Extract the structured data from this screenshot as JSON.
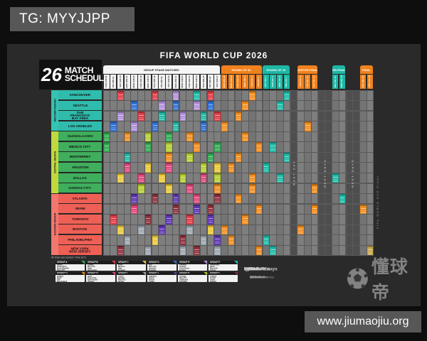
{
  "overlay": {
    "tg": "TG: MYYJJPP",
    "url": "www.jiumaojiu.org",
    "watermark": "懂球帝"
  },
  "poster": {
    "title": "FIFA WORLD CUP 2026",
    "logo": {
      "number": "26",
      "line1": "MATCH",
      "line2": "SCHEDULE"
    },
    "footnote": "All times are Eastern Time (ET)",
    "vertical_caption": "FIFA WORLD CUP FINAL",
    "colors": {
      "tab_orange": "#f0821e",
      "tab_teal": "#1db8a5",
      "tab_white": "#f5f5f5",
      "grid_bg": "#5a5a5a",
      "cell": "#7e7e7e",
      "cell_alt": "#747474",
      "cell_rest": "#4e4e4e",
      "final_gold": "#c8a84b",
      "western": "#2fbcac",
      "western_strip": "#35c3b2",
      "central": "#3fae5d",
      "central_strip": "#c1d93f",
      "eastern": "#ee5f55",
      "eastern_strip": "#f2776e"
    },
    "palette": {
      "A": "#2fa84f",
      "B": "#e03a45",
      "C": "#e9c737",
      "D": "#2e6fd4",
      "E": "#b08fd8",
      "F": "#1db8a5",
      "G": "#f08c1e",
      "H": "#e0457b",
      "I": "#9aa4ad",
      "J": "#5e35b1",
      "K": "#b5cc2e",
      "L": "#8e2f3c",
      "O": "#f08c1e",
      "T": "#1db8a5",
      "X": "#c8a84b"
    },
    "stage_tabs": [
      {
        "label": "GROUP STAGE MATCHES",
        "bg": "#f5f5f5",
        "fg": "#1c1c1c",
        "c0": 0,
        "c1": 16
      },
      {
        "label": "ROUND OF 32",
        "bg": "#f0821e",
        "fg": "#ffffff",
        "c0": 17,
        "c1": 22
      },
      {
        "label": "ROUND OF 16",
        "bg": "#1db8a5",
        "fg": "#ffffff",
        "c0": 23,
        "c1": 26
      },
      {
        "label": "QUARTER-FINALS",
        "bg": "#f0821e",
        "fg": "#ffffff",
        "c0": 28,
        "c1": 30
      },
      {
        "label": "SEMI-FINALS",
        "bg": "#1db8a5",
        "fg": "#ffffff",
        "c0": 33,
        "c1": 34
      },
      {
        "label": "FINAL",
        "bg": "#f0821e",
        "fg": "#ffffff",
        "c0": 37,
        "c1": 38
      }
    ],
    "columns": [
      {
        "dow": "THU",
        "date": "JUN 11",
        "stage": "group"
      },
      {
        "dow": "FRI",
        "date": "JUN 12",
        "stage": "group"
      },
      {
        "dow": "SAT",
        "date": "JUN 13",
        "stage": "group"
      },
      {
        "dow": "SUN",
        "date": "JUN 14",
        "stage": "group"
      },
      {
        "dow": "MON",
        "date": "JUN 15",
        "stage": "group"
      },
      {
        "dow": "TUE",
        "date": "JUN 16",
        "stage": "group"
      },
      {
        "dow": "WED",
        "date": "JUN 17",
        "stage": "group"
      },
      {
        "dow": "THU",
        "date": "JUN 18",
        "stage": "group"
      },
      {
        "dow": "FRI",
        "date": "JUN 19",
        "stage": "group"
      },
      {
        "dow": "SAT",
        "date": "JUN 20",
        "stage": "group"
      },
      {
        "dow": "SUN",
        "date": "JUN 21",
        "stage": "group"
      },
      {
        "dow": "MON",
        "date": "JUN 22",
        "stage": "group"
      },
      {
        "dow": "TUE",
        "date": "JUN 23",
        "stage": "group"
      },
      {
        "dow": "WED",
        "date": "JUN 24",
        "stage": "group"
      },
      {
        "dow": "THU",
        "date": "JUN 25",
        "stage": "group"
      },
      {
        "dow": "FRI",
        "date": "JUN 26",
        "stage": "group"
      },
      {
        "dow": "SAT",
        "date": "JUN 27",
        "stage": "group"
      },
      {
        "dow": "SUN",
        "date": "JUN 28",
        "stage": "r32"
      },
      {
        "dow": "MON",
        "date": "JUN 29",
        "stage": "r32"
      },
      {
        "dow": "TUE",
        "date": "JUN 30",
        "stage": "r32"
      },
      {
        "dow": "WED",
        "date": "JUL 1",
        "stage": "r32"
      },
      {
        "dow": "THU",
        "date": "JUL 2",
        "stage": "r32"
      },
      {
        "dow": "FRI",
        "date": "JUL 3",
        "stage": "r32"
      },
      {
        "dow": "SAT",
        "date": "JUL 4",
        "stage": "r16"
      },
      {
        "dow": "SUN",
        "date": "JUL 5",
        "stage": "r16"
      },
      {
        "dow": "MON",
        "date": "JUL 6",
        "stage": "r16"
      },
      {
        "dow": "TUE",
        "date": "JUL 7",
        "stage": "r16"
      },
      {
        "dow": "WED",
        "date": "JUL 8",
        "stage": "rest"
      },
      {
        "dow": "THU",
        "date": "JUL 9",
        "stage": "qf"
      },
      {
        "dow": "FRI",
        "date": "JUL 10",
        "stage": "qf"
      },
      {
        "dow": "SAT",
        "date": "JUL 11",
        "stage": "qf"
      },
      {
        "dow": "SUN",
        "date": "JUL 12",
        "stage": "rest"
      },
      {
        "dow": "MON",
        "date": "JUL 13",
        "stage": "rest"
      },
      {
        "dow": "TUE",
        "date": "JUL 14",
        "stage": "sf"
      },
      {
        "dow": "WED",
        "date": "JUL 15",
        "stage": "sf"
      },
      {
        "dow": "THU",
        "date": "JUL 16",
        "stage": "rest"
      },
      {
        "dow": "FRI",
        "date": "JUL 17",
        "stage": "rest"
      },
      {
        "dow": "SAT",
        "date": "JUL 18",
        "stage": "bronze"
      },
      {
        "dow": "SUN",
        "date": "JUL 19",
        "stage": "final"
      }
    ],
    "rest_groups": [
      {
        "cols": [
          27
        ],
        "label": "REST DAY"
      },
      {
        "cols": [
          31,
          32
        ],
        "label": "REST DAYS"
      },
      {
        "cols": [
          35,
          36
        ],
        "label": "REST DAYS"
      }
    ],
    "regions": [
      {
        "name": "WESTERN REGION",
        "rows": [
          0,
          3
        ],
        "cities": [
          "VANCOUVER",
          "SEATTLE",
          "SAN FRANCISCO\nBAY AREA",
          "LOS ANGELES"
        ]
      },
      {
        "name": "CENTRAL REGION",
        "rows": [
          4,
          9
        ],
        "cities": [
          "GUADALAJARA",
          "MEXICO CITY",
          "MONTERREY",
          "HOUSTON",
          "DALLAS",
          "KANSAS CITY"
        ]
      },
      {
        "name": "EASTERN REGION",
        "rows": [
          10,
          15
        ],
        "cities": [
          "ATLANTA",
          "MIAMI",
          "TORONTO",
          "BOSTON",
          "PHILADELPHIA",
          "NEW YORK\nNEW JERSEY"
        ]
      }
    ],
    "grid_cells": [
      [
        0,
        2,
        "B"
      ],
      [
        0,
        7,
        "B"
      ],
      [
        0,
        10,
        "E"
      ],
      [
        0,
        13,
        "F"
      ],
      [
        0,
        15,
        "B"
      ],
      [
        1,
        4,
        "D"
      ],
      [
        1,
        8,
        "E"
      ],
      [
        1,
        10,
        "D"
      ],
      [
        1,
        13,
        "E"
      ],
      [
        1,
        15,
        "D"
      ],
      [
        2,
        2,
        "E"
      ],
      [
        2,
        5,
        "B"
      ],
      [
        2,
        8,
        "F"
      ],
      [
        2,
        11,
        "E"
      ],
      [
        2,
        14,
        "F"
      ],
      [
        2,
        16,
        "B"
      ],
      [
        3,
        1,
        "D"
      ],
      [
        3,
        4,
        "E"
      ],
      [
        3,
        7,
        "D"
      ],
      [
        3,
        10,
        "F"
      ],
      [
        3,
        14,
        "D"
      ],
      [
        4,
        0,
        "A"
      ],
      [
        4,
        3,
        "G"
      ],
      [
        4,
        6,
        "K"
      ],
      [
        4,
        9,
        "A"
      ],
      [
        4,
        12,
        "G"
      ],
      [
        5,
        0,
        "A"
      ],
      [
        5,
        6,
        "A"
      ],
      [
        5,
        9,
        "K"
      ],
      [
        5,
        13,
        "G"
      ],
      [
        5,
        16,
        "A"
      ],
      [
        6,
        3,
        "F"
      ],
      [
        6,
        9,
        "G"
      ],
      [
        6,
        12,
        "K"
      ],
      [
        6,
        15,
        "A"
      ],
      [
        7,
        3,
        "H"
      ],
      [
        7,
        6,
        "C"
      ],
      [
        7,
        9,
        "H"
      ],
      [
        7,
        14,
        "K"
      ],
      [
        7,
        16,
        "C"
      ],
      [
        8,
        2,
        "C"
      ],
      [
        8,
        5,
        "H"
      ],
      [
        8,
        8,
        "C"
      ],
      [
        8,
        11,
        "K"
      ],
      [
        8,
        14,
        "H"
      ],
      [
        8,
        16,
        "K"
      ],
      [
        9,
        5,
        "K"
      ],
      [
        9,
        9,
        "C"
      ],
      [
        9,
        12,
        "H"
      ],
      [
        9,
        16,
        "G"
      ],
      [
        10,
        4,
        "J"
      ],
      [
        10,
        7,
        "L"
      ],
      [
        10,
        10,
        "J"
      ],
      [
        10,
        13,
        "H"
      ],
      [
        10,
        16,
        "L"
      ],
      [
        11,
        4,
        "H"
      ],
      [
        11,
        10,
        "L"
      ],
      [
        11,
        13,
        "J"
      ],
      [
        11,
        15,
        "L"
      ],
      [
        12,
        1,
        "B"
      ],
      [
        12,
        6,
        "L"
      ],
      [
        12,
        9,
        "J"
      ],
      [
        12,
        12,
        "B"
      ],
      [
        12,
        15,
        "J"
      ],
      [
        13,
        2,
        "C"
      ],
      [
        13,
        5,
        "I"
      ],
      [
        13,
        8,
        "J"
      ],
      [
        13,
        12,
        "I"
      ],
      [
        13,
        15,
        "C"
      ],
      [
        14,
        3,
        "I"
      ],
      [
        14,
        7,
        "C"
      ],
      [
        14,
        11,
        "L"
      ],
      [
        14,
        14,
        "I"
      ],
      [
        14,
        16,
        "J"
      ],
      [
        15,
        2,
        "L"
      ],
      [
        15,
        6,
        "I"
      ],
      [
        15,
        11,
        "I"
      ],
      [
        15,
        13,
        "L"
      ],
      [
        15,
        16,
        "I"
      ],
      [
        3,
        17,
        "O"
      ],
      [
        13,
        17,
        "O"
      ],
      [
        7,
        18,
        "O"
      ],
      [
        14,
        18,
        "O"
      ],
      [
        2,
        19,
        "O"
      ],
      [
        6,
        19,
        "O"
      ],
      [
        10,
        19,
        "O"
      ],
      [
        1,
        20,
        "O"
      ],
      [
        4,
        20,
        "O"
      ],
      [
        12,
        20,
        "O"
      ],
      [
        0,
        21,
        "O"
      ],
      [
        8,
        21,
        "O"
      ],
      [
        9,
        21,
        "O"
      ],
      [
        5,
        22,
        "O"
      ],
      [
        11,
        22,
        "O"
      ],
      [
        15,
        22,
        "O"
      ],
      [
        7,
        23,
        "T"
      ],
      [
        14,
        23,
        "T"
      ],
      [
        5,
        24,
        "T"
      ],
      [
        15,
        24,
        "T"
      ],
      [
        1,
        25,
        "T"
      ],
      [
        8,
        25,
        "T"
      ],
      [
        0,
        26,
        "T"
      ],
      [
        6,
        26,
        "T"
      ],
      [
        13,
        28,
        "O"
      ],
      [
        3,
        29,
        "O"
      ],
      [
        9,
        30,
        "O"
      ],
      [
        11,
        30,
        "O"
      ],
      [
        8,
        33,
        "T"
      ],
      [
        10,
        34,
        "T"
      ],
      [
        11,
        37,
        "O"
      ],
      [
        15,
        38,
        "X"
      ]
    ],
    "legend": [
      {
        "name": "GROUP A",
        "color": "#2fa84f",
        "teams": [
          "Mexico",
          "South Africa",
          "Korea Republic",
          "Play-off D"
        ]
      },
      {
        "name": "GROUP B",
        "color": "#e03a45",
        "teams": [
          "Canada",
          "Play-off A",
          "Qatar",
          "Switzerland"
        ]
      },
      {
        "name": "GROUP C",
        "color": "#e9c737",
        "teams": [
          "Brazil",
          "Morocco",
          "Haiti",
          "Scotland"
        ]
      },
      {
        "name": "GROUP D",
        "color": "#2e6fd4",
        "teams": [
          "USA",
          "Play-off C",
          "Australia",
          "Paraguay"
        ]
      },
      {
        "name": "GROUP E",
        "color": "#b08fd8",
        "teams": [
          "Germany",
          "Curaçao",
          "Côte d'Ivoire",
          "Ecuador"
        ]
      },
      {
        "name": "GROUP F",
        "color": "#1db8a5",
        "teams": [
          "Netherlands",
          "Japan",
          "Play-off B",
          "Tunisia"
        ]
      },
      {
        "name": "GROUP G",
        "color": "#f08c1e",
        "teams": [
          "Belgium",
          "Egypt",
          "Iran",
          "New Zealand"
        ]
      },
      {
        "name": "GROUP H",
        "color": "#e0457b",
        "teams": [
          "Spain",
          "Cape Verde",
          "Saudi Arabia",
          "Uruguay"
        ]
      },
      {
        "name": "GROUP I",
        "color": "#9aa4ad",
        "teams": [
          "France",
          "Senegal",
          "Play-off 2",
          "Norway"
        ]
      },
      {
        "name": "GROUP J",
        "color": "#5e35b1",
        "teams": [
          "Argentina",
          "Algeria",
          "Austria",
          "Jordan"
        ]
      },
      {
        "name": "GROUP K",
        "color": "#b5cc2e",
        "teams": [
          "Portugal",
          "Play-off 1",
          "Uzbekistan",
          "Colombia"
        ]
      },
      {
        "name": "GROUP L",
        "color": "#8e2f3c",
        "teams": [
          "England",
          "Croatia",
          "Ghana",
          "Panama"
        ]
      }
    ],
    "sponsors": {
      "row1": [
        "adidas",
        "Coca-Cola",
        "Hyundai·Kia",
        "aramco",
        "Lenovo",
        "QATAR Airways",
        "VISA"
      ],
      "row2": [
        "bank of america",
        "verizon",
        "Hisense",
        "AB InBev",
        "McDonald's",
        "MENGNIU"
      ]
    }
  }
}
